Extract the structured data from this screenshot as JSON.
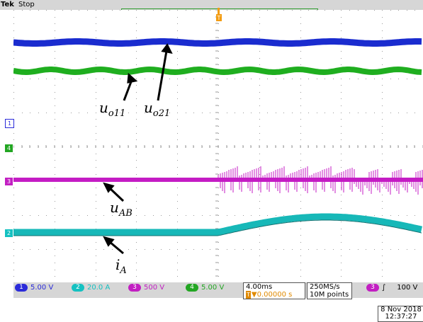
{
  "header": {
    "brand": "Tek",
    "status": "Stop"
  },
  "trigger_marker": "T",
  "channel_markers": [
    {
      "id": "1",
      "color": "#2b2bd9"
    },
    {
      "id": "4",
      "color": "#23a623"
    },
    {
      "id": "3",
      "color": "#c21fc2"
    },
    {
      "id": "2",
      "color": "#14c1c1"
    }
  ],
  "annotations": {
    "uo11": {
      "base": "u",
      "sub": "o11"
    },
    "uo21": {
      "base": "u",
      "sub": "o21"
    },
    "uAB": {
      "base": "u",
      "sub": "AB"
    },
    "iA": {
      "base": "i",
      "sub": "A"
    }
  },
  "channels": [
    {
      "num": "1",
      "scale": "5.00 V",
      "color": "#2b2bd9"
    },
    {
      "num": "2",
      "scale": "20.0 A",
      "color": "#14c1c1"
    },
    {
      "num": "3",
      "scale": "500 V",
      "color": "#c21fc2"
    },
    {
      "num": "4",
      "scale": "5.00 V",
      "color": "#23a623"
    }
  ],
  "timebase": {
    "per_div": "4.00ms",
    "trig_pos": "▼0.00000 s"
  },
  "acquisition": {
    "rate": "250MS/s",
    "record": "10M points"
  },
  "trigger": {
    "source": "3",
    "slope": "∫",
    "level": "100 V"
  },
  "datetime": {
    "date": "8 Nov 2018",
    "time": "12:37:27"
  },
  "colors": {
    "background": "#ffffff",
    "grid": "#9a9a9a",
    "bars": "#d6d6d6"
  }
}
